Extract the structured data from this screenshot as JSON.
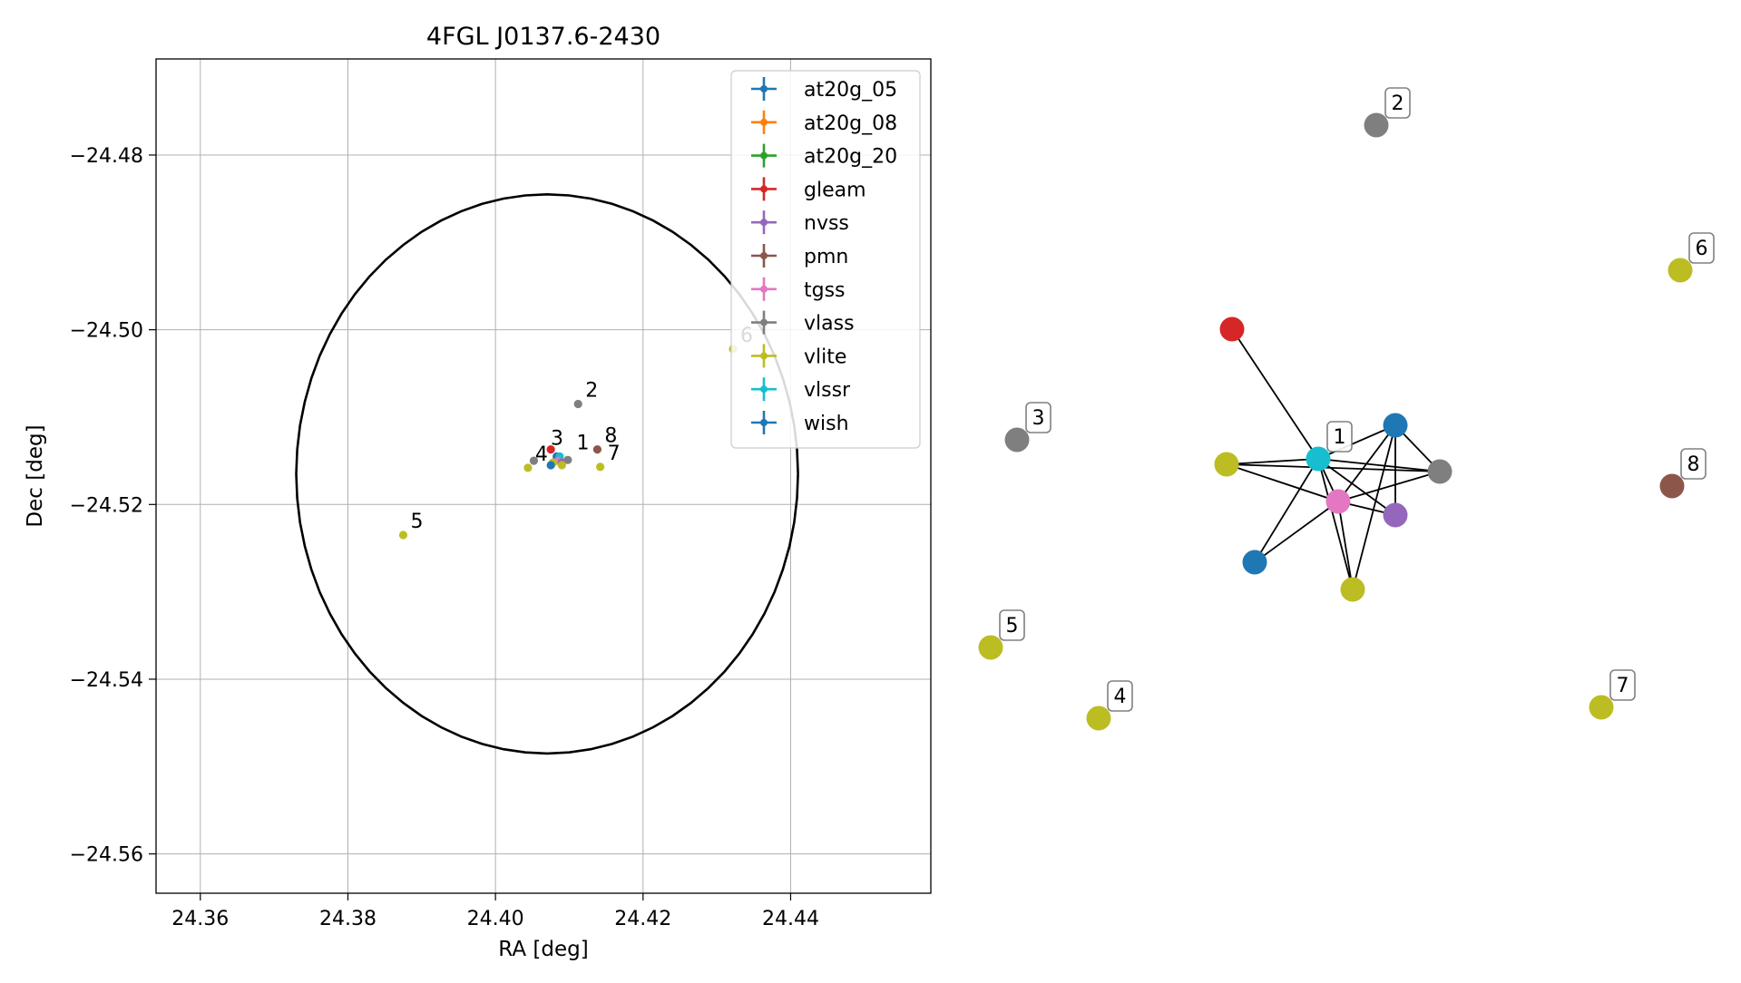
{
  "chart_data": [
    {
      "type": "scatter",
      "title": "4FGL J0137.6-2430",
      "xlabel": "RA [deg]",
      "ylabel": "Dec [deg]",
      "xlim": [
        24.354,
        24.459
      ],
      "ylim": [
        -24.5645,
        -24.469
      ],
      "xticks": [
        24.36,
        24.38,
        24.4,
        24.42,
        24.44
      ],
      "xtick_labels": [
        "24.36",
        "24.38",
        "24.40",
        "24.42",
        "24.44"
      ],
      "yticks": [
        -24.48,
        -24.5,
        -24.52,
        -24.54,
        -24.56
      ],
      "ytick_labels": [
        "−24.48",
        "−24.50",
        "−24.52",
        "−24.54",
        "−24.56"
      ],
      "grid": true,
      "legend_position": "top-right",
      "ellipse": {
        "center": [
          24.407,
          -24.5165
        ],
        "ra_semi_axis": 0.034,
        "dec_semi_axis": 0.032
      },
      "series": [
        {
          "name": "at20g_05",
          "color": "#1f77b4"
        },
        {
          "name": "at20g_08",
          "color": "#ff7f0e"
        },
        {
          "name": "at20g_20",
          "color": "#2ca02c"
        },
        {
          "name": "gleam",
          "color": "#d62728"
        },
        {
          "name": "nvss",
          "color": "#9467bd"
        },
        {
          "name": "pmn",
          "color": "#8c564b"
        },
        {
          "name": "tgss",
          "color": "#e377c2"
        },
        {
          "name": "vlass",
          "color": "#7f7f7f"
        },
        {
          "name": "vlite",
          "color": "#bcbd22"
        },
        {
          "name": "vlssr",
          "color": "#17becf"
        },
        {
          "name": "wish",
          "color": "#1f77b4"
        }
      ],
      "points": [
        {
          "series": "gleam",
          "x": 24.4075,
          "y": -24.5137,
          "color": "#d62728"
        },
        {
          "series": "at20g_05",
          "x": 24.4083,
          "y": -24.5145,
          "color": "#1f77b4"
        },
        {
          "series": "vlssr",
          "x": 24.4087,
          "y": -24.5145,
          "color": "#17becf"
        },
        {
          "series": "tgss",
          "x": 24.4085,
          "y": -24.515,
          "color": "#e377c2"
        },
        {
          "series": "nvss",
          "x": 24.409,
          "y": -24.5152,
          "color": "#9467bd"
        },
        {
          "series": "vlass",
          "x": 24.4098,
          "y": -24.5149,
          "color": "#7f7f7f"
        },
        {
          "series": "vlite",
          "x": 24.4078,
          "y": -24.5152,
          "color": "#bcbd22"
        },
        {
          "series": "vlite",
          "x": 24.409,
          "y": -24.5155,
          "color": "#bcbd22"
        },
        {
          "series": "wish",
          "x": 24.4075,
          "y": -24.5155,
          "color": "#1f77b4"
        },
        {
          "series": "vlass",
          "x": 24.4112,
          "y": -24.5085,
          "color": "#7f7f7f"
        },
        {
          "series": "vlass",
          "x": 24.4052,
          "y": -24.515,
          "color": "#7f7f7f"
        },
        {
          "series": "vlite",
          "x": 24.4044,
          "y": -24.5158,
          "color": "#bcbd22"
        },
        {
          "series": "vlite",
          "x": 24.3875,
          "y": -24.5235,
          "color": "#bcbd22"
        },
        {
          "series": "vlite",
          "x": 24.4322,
          "y": -24.5022,
          "color": "#bcbd22"
        },
        {
          "series": "vlite",
          "x": 24.4142,
          "y": -24.5157,
          "color": "#bcbd22"
        },
        {
          "series": "pmn",
          "x": 24.4138,
          "y": -24.5137,
          "color": "#8c564b"
        }
      ],
      "annotations": [
        {
          "text": "1",
          "x": 24.41,
          "y": -24.5145
        },
        {
          "text": "2",
          "x": 24.4112,
          "y": -24.5085
        },
        {
          "text": "3",
          "x": 24.4065,
          "y": -24.514
        },
        {
          "text": "4",
          "x": 24.4044,
          "y": -24.5158
        },
        {
          "text": "5",
          "x": 24.3875,
          "y": -24.5235
        },
        {
          "text": "6",
          "x": 24.4322,
          "y": -24.5022
        },
        {
          "text": "7",
          "x": 24.4142,
          "y": -24.5157
        },
        {
          "text": "8",
          "x": 24.4138,
          "y": -24.5137
        }
      ]
    },
    {
      "type": "network",
      "nodes": [
        {
          "id": "red",
          "series": "gleam",
          "color": "#d62728"
        },
        {
          "id": "cyan",
          "series": "vlssr",
          "color": "#17becf",
          "label": "1"
        },
        {
          "id": "blue-top",
          "series": "at20g_05",
          "color": "#1f77b4"
        },
        {
          "id": "olive-left",
          "series": "vlite",
          "color": "#bcbd22"
        },
        {
          "id": "gray-right",
          "series": "vlass",
          "color": "#7f7f7f"
        },
        {
          "id": "pink",
          "series": "tgss",
          "color": "#e377c2"
        },
        {
          "id": "purple",
          "series": "nvss",
          "color": "#9467bd"
        },
        {
          "id": "blue-bottom",
          "series": "wish",
          "color": "#1f77b4"
        },
        {
          "id": "olive-bottom",
          "series": "vlite",
          "color": "#bcbd22"
        },
        {
          "id": "n2",
          "series": "vlass",
          "color": "#7f7f7f",
          "label": "2"
        },
        {
          "id": "n3",
          "series": "vlass",
          "color": "#7f7f7f",
          "label": "3"
        },
        {
          "id": "n4",
          "series": "vlite",
          "color": "#bcbd22",
          "label": "4"
        },
        {
          "id": "n5",
          "series": "vlite",
          "color": "#bcbd22",
          "label": "5"
        },
        {
          "id": "n6",
          "series": "vlite",
          "color": "#bcbd22",
          "label": "6"
        },
        {
          "id": "n7",
          "series": "vlite",
          "color": "#bcbd22",
          "label": "7"
        },
        {
          "id": "n8",
          "series": "pmn",
          "color": "#8c564b",
          "label": "8"
        }
      ],
      "edges": [
        [
          "red",
          "cyan"
        ],
        [
          "cyan",
          "olive-left"
        ],
        [
          "cyan",
          "blue-top"
        ],
        [
          "cyan",
          "gray-right"
        ],
        [
          "cyan",
          "pink"
        ],
        [
          "cyan",
          "purple"
        ],
        [
          "cyan",
          "blue-bottom"
        ],
        [
          "cyan",
          "olive-bottom"
        ],
        [
          "olive-left",
          "pink"
        ],
        [
          "olive-left",
          "gray-right"
        ],
        [
          "pink",
          "blue-top"
        ],
        [
          "pink",
          "gray-right"
        ],
        [
          "pink",
          "purple"
        ],
        [
          "pink",
          "blue-bottom"
        ],
        [
          "pink",
          "olive-bottom"
        ],
        [
          "blue-top",
          "gray-right"
        ],
        [
          "blue-top",
          "purple"
        ],
        [
          "blue-top",
          "olive-bottom"
        ]
      ]
    }
  ]
}
